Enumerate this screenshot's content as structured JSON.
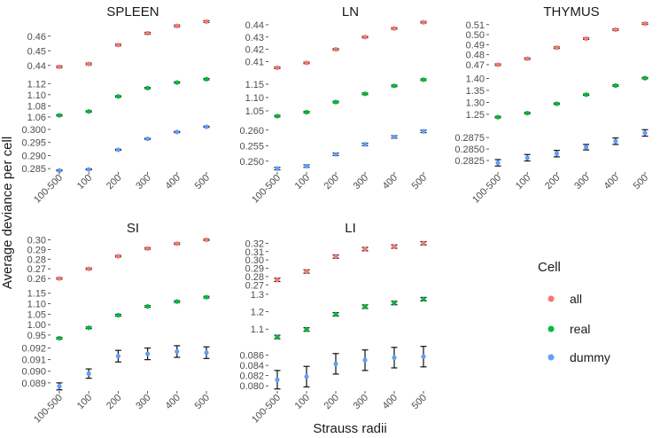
{
  "chart_data": {
    "type": "scatter",
    "ylabel": "Average deviance per cell",
    "xlabel": "Strauss radii",
    "categories": [
      "100-500",
      "100",
      "200",
      "300",
      "400",
      "500"
    ],
    "legend": {
      "title": "Cell",
      "placement": "right",
      "items": [
        {
          "key": "all",
          "label": "all",
          "color": "#F8766D"
        },
        {
          "key": "real",
          "label": "real",
          "color": "#00BA38"
        },
        {
          "key": "dummy",
          "label": "dummy",
          "color": "#619CFF"
        }
      ]
    },
    "panels": [
      {
        "title": "SPLEEN",
        "rows": [
          {
            "series": "all",
            "ylim": [
              0.435,
              0.472
            ],
            "ticks": [
              "0.44",
              "0.45",
              "0.46"
            ],
            "tick_values": [
              0.44,
              0.45,
              0.46
            ],
            "values": [
              0.439,
              0.441,
              0.454,
              0.462,
              0.467,
              0.47
            ],
            "err": [
              0.0006,
              0.0006,
              0.0006,
              0.0006,
              0.0006,
              0.0006
            ]
          },
          {
            "series": "real",
            "ylim": [
              1.052,
              1.138
            ],
            "ticks": [
              "1.06",
              "1.08",
              "1.10",
              "1.12"
            ],
            "tick_values": [
              1.06,
              1.08,
              1.1,
              1.12
            ],
            "values": [
              1.063,
              1.07,
              1.097,
              1.112,
              1.122,
              1.128
            ],
            "err": [
              0.0012,
              0.0012,
              0.0012,
              0.0012,
              0.0012,
              0.0012
            ]
          },
          {
            "series": "dummy",
            "ylim": [
              0.2837,
              0.3027
            ],
            "ticks": [
              "0.285",
              "0.290",
              "0.295",
              "0.300"
            ],
            "tick_values": [
              0.285,
              0.29,
              0.295,
              0.3
            ],
            "values": [
              0.2843,
              0.2847,
              0.2922,
              0.2964,
              0.299,
              0.301
            ],
            "err": [
              0.0002,
              0.0002,
              0.0002,
              0.0002,
              0.0002,
              0.0002
            ]
          }
        ]
      },
      {
        "title": "LN",
        "rows": [
          {
            "series": "all",
            "ylim": [
              0.401,
              0.445
            ],
            "ticks": [
              "0.41",
              "0.42",
              "0.43",
              "0.44"
            ],
            "tick_values": [
              0.41,
              0.42,
              0.43,
              0.44
            ],
            "values": [
              0.405,
              0.409,
              0.42,
              0.43,
              0.437,
              0.442
            ],
            "err": [
              0.0006,
              0.0006,
              0.0006,
              0.0006,
              0.0006,
              0.0006
            ]
          },
          {
            "series": "real",
            "ylim": [
              1.01,
              1.19
            ],
            "ticks": [
              "1.05",
              "1.10",
              "1.15"
            ],
            "tick_values": [
              1.05,
              1.1,
              1.15
            ],
            "values": [
              1.03,
              1.045,
              1.083,
              1.114,
              1.144,
              1.167
            ],
            "err": [
              0.003,
              0.003,
              0.003,
              0.003,
              0.003,
              0.003
            ]
          },
          {
            "series": "dummy",
            "ylim": [
              0.2465,
              0.2625
            ],
            "ticks": [
              "0.250",
              "0.255",
              "0.260"
            ],
            "tick_values": [
              0.25,
              0.255,
              0.26
            ],
            "values": [
              0.2476,
              0.2484,
              0.2522,
              0.2554,
              0.2578,
              0.2596
            ],
            "err": [
              0.0004,
              0.0004,
              0.0004,
              0.0004,
              0.0004,
              0.0004
            ]
          }
        ]
      },
      {
        "title": "THYMUS",
        "rows": [
          {
            "series": "all",
            "ylim": [
              0.462,
              0.516
            ],
            "ticks": [
              "0.47",
              "0.48",
              "0.49",
              "0.50",
              "0.51"
            ],
            "tick_values": [
              0.47,
              0.48,
              0.49,
              0.5,
              0.51
            ],
            "values": [
              0.47,
              0.476,
              0.487,
              0.496,
              0.505,
              0.511
            ],
            "err": [
              0.0008,
              0.0008,
              0.0008,
              0.0008,
              0.0008,
              0.0008
            ]
          },
          {
            "series": "real",
            "ylim": [
              1.22,
              1.42
            ],
            "ticks": [
              "1.25",
              "1.30",
              "1.35",
              "1.40"
            ],
            "tick_values": [
              1.25,
              1.3,
              1.35,
              1.4
            ],
            "values": [
              1.238,
              1.255,
              1.294,
              1.332,
              1.37,
              1.401
            ],
            "err": [
              0.003,
              0.003,
              0.003,
              0.003,
              0.003,
              0.003
            ]
          },
          {
            "series": "dummy",
            "ylim": [
              0.28,
              0.2908
            ],
            "ticks": [
              "0.2825",
              "0.2850",
              "0.2875"
            ],
            "tick_values": [
              0.2825,
              0.285,
              0.2875
            ],
            "values": [
              0.282,
              0.2831,
              0.284,
              0.2854,
              0.2867,
              0.2885
            ],
            "err": [
              0.0007,
              0.0007,
              0.0007,
              0.0006,
              0.0007,
              0.0007
            ]
          }
        ]
      },
      {
        "title": "SI",
        "rows": [
          {
            "series": "all",
            "ylim": [
              0.25,
              0.305
            ],
            "ticks": [
              "0.26",
              "0.27",
              "0.28",
              "0.29",
              "0.30"
            ],
            "tick_values": [
              0.26,
              0.27,
              0.28,
              0.29,
              0.3
            ],
            "values": [
              0.26,
              0.27,
              0.283,
              0.291,
              0.296,
              0.3
            ],
            "err": [
              0.0008,
              0.0008,
              0.0008,
              0.0008,
              0.0008,
              0.0008
            ]
          },
          {
            "series": "real",
            "ylim": [
              0.92,
              1.17
            ],
            "ticks": [
              "0.95",
              "1.00",
              "1.05",
              "1.10",
              "1.15"
            ],
            "tick_values": [
              0.95,
              1.0,
              1.05,
              1.1,
              1.15
            ],
            "values": [
              0.935,
              0.985,
              1.045,
              1.087,
              1.11,
              1.131
            ],
            "err": [
              0.004,
              0.004,
              0.004,
              0.004,
              0.004,
              0.004
            ]
          },
          {
            "series": "dummy",
            "ylim": [
              0.0883,
              0.0925
            ],
            "ticks": [
              "0.089",
              "0.090",
              "0.091",
              "0.092"
            ],
            "tick_values": [
              0.089,
              0.09,
              0.091,
              0.092
            ],
            "values": [
              0.0887,
              0.0898,
              0.0913,
              0.0915,
              0.0917,
              0.0916
            ],
            "err": [
              0.0003,
              0.0004,
              0.0005,
              0.0005,
              0.0005,
              0.0005
            ]
          }
        ]
      },
      {
        "title": "LI",
        "rows": [
          {
            "series": "all",
            "ylim": [
              0.266,
              0.33
            ],
            "ticks": [
              "0.27",
              "0.28",
              "0.29",
              "0.30",
              "0.31",
              "0.32"
            ],
            "tick_values": [
              0.27,
              0.28,
              0.29,
              0.3,
              0.31,
              0.32
            ],
            "values": [
              0.276,
              0.286,
              0.304,
              0.313,
              0.316,
              0.32
            ],
            "err": [
              0.002,
              0.002,
              0.002,
              0.002,
              0.002,
              0.002
            ]
          },
          {
            "series": "real",
            "ylim": [
              1.03,
              1.33
            ],
            "ticks": [
              "1.1",
              "1.2",
              "1.3"
            ],
            "tick_values": [
              1.1,
              1.2,
              1.3
            ],
            "values": [
              1.055,
              1.098,
              1.185,
              1.229,
              1.25,
              1.272
            ],
            "err": [
              0.01,
              0.01,
              0.01,
              0.01,
              0.01,
              0.01
            ]
          },
          {
            "series": "dummy",
            "ylim": [
              0.079,
              0.0885
            ],
            "ticks": [
              "0.080",
              "0.082",
              "0.084",
              "0.086"
            ],
            "tick_values": [
              0.08,
              0.082,
              0.084,
              0.086
            ],
            "values": [
              0.0812,
              0.0818,
              0.0843,
              0.085,
              0.0855,
              0.0857
            ],
            "err": [
              0.0018,
              0.002,
              0.002,
              0.002,
              0.002,
              0.002
            ]
          }
        ]
      }
    ]
  }
}
